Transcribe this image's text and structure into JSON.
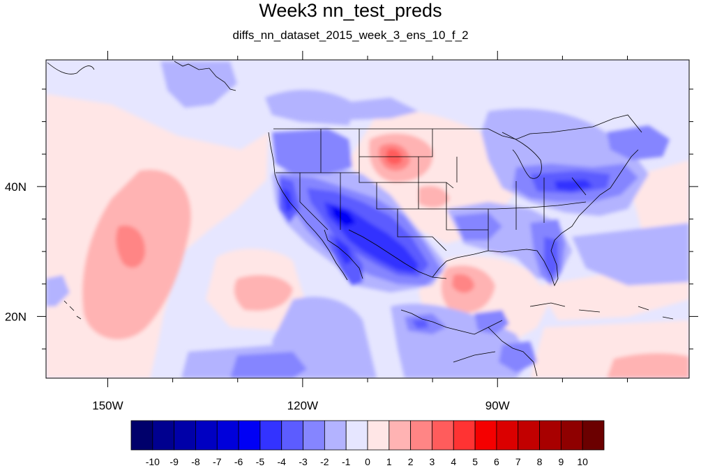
{
  "figure": {
    "title": "Week3 nn_test_preds",
    "subtitle": "diffs_nn_dataset_2015_week_3_ens_10_f_2"
  },
  "axes": {
    "x_ticks": [
      {
        "label": "150W",
        "lon": -150
      },
      {
        "label": "120W",
        "lon": -120
      },
      {
        "label": "90W",
        "lon": -90
      }
    ],
    "y_ticks": [
      {
        "label": "40N",
        "lat": 40
      },
      {
        "label": "20N",
        "lat": 20
      }
    ],
    "lon_range": [
      -159.5,
      -60.5
    ],
    "lat_range": [
      10.5,
      59.5
    ]
  },
  "colorbar": {
    "labels": [
      "-10",
      "-9",
      "-8",
      "-7",
      "-6",
      "-5",
      "-4",
      "-3",
      "-2",
      "-1",
      "0",
      "1",
      "2",
      "3",
      "4",
      "5",
      "6",
      "7",
      "8",
      "9",
      "10"
    ],
    "colors": [
      "#00006b",
      "#00008f",
      "#0000a8",
      "#0000c2",
      "#0000db",
      "#0000f5",
      "#3333ff",
      "#5c5cff",
      "#8585ff",
      "#b3b3ff",
      "#e6e6ff",
      "#ffe6e6",
      "#ffb3b3",
      "#ff8585",
      "#ff5c5c",
      "#ff3333",
      "#f50000",
      "#db0000",
      "#c20000",
      "#a80000",
      "#8f0000",
      "#6b0000"
    ]
  },
  "colors": {
    "background_field": "#e6e6ff",
    "map_frame": "#000000"
  }
}
